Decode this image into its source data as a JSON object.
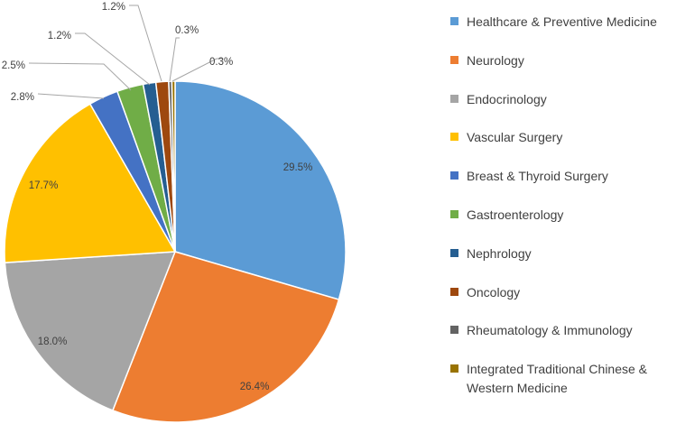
{
  "chart_data": {
    "type": "pie",
    "title": "",
    "categories": [
      "Healthcare & Preventive Medicine",
      "Neurology",
      "Endocrinology",
      "Vascular Surgery",
      "Breast & Thyroid Surgery",
      "Gastroenterology",
      "Nephrology",
      "Oncology",
      "Rheumatology & Immunology",
      "Integrated Traditional Chinese & Western Medicine"
    ],
    "values": [
      29.5,
      26.4,
      18.0,
      17.7,
      2.8,
      2.5,
      1.2,
      1.2,
      0.3,
      0.3
    ],
    "labels": [
      "29.5%",
      "26.4%",
      "18.0%",
      "17.7%",
      "2.8%",
      "2.5%",
      "1.2%",
      "1.2%",
      "0.3%",
      "0.3%"
    ],
    "colors": [
      "#5b9bd5",
      "#ed7d31",
      "#a5a5a5",
      "#ffc000",
      "#4472c4",
      "#70ad47",
      "#255e91",
      "#9e480e",
      "#636363",
      "#997300"
    ],
    "legend_position": "right"
  }
}
